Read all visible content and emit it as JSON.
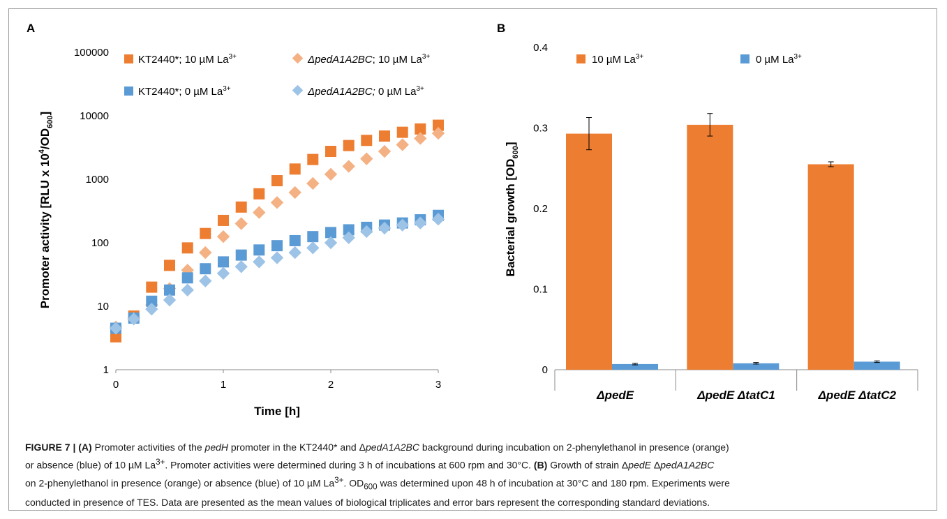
{
  "panels": {
    "a_label": "A",
    "b_label": "B"
  },
  "chart_data": [
    {
      "type": "scatter",
      "panel": "A",
      "xlabel": "Time [h]",
      "ylabel_main": "Promoter activity [RLU x 10",
      "ylabel_sup": "4",
      "ylabel_mid": "/OD",
      "ylabel_sub": "600",
      "ylabel_end": "]",
      "y_scale": "log",
      "xlim": [
        0,
        3
      ],
      "ylim": [
        1,
        100000
      ],
      "x_ticks": [
        "0",
        "1",
        "2",
        "3"
      ],
      "y_ticks": [
        "1",
        "10",
        "100",
        "1000",
        "10000",
        "100000"
      ],
      "x": [
        0,
        0.167,
        0.333,
        0.5,
        0.667,
        0.833,
        1.0,
        1.167,
        1.333,
        1.5,
        1.667,
        1.833,
        2.0,
        2.167,
        2.333,
        2.5,
        2.667,
        2.833,
        3.0
      ],
      "series": [
        {
          "name_a": "KT2440*; 10 µM La",
          "name_sup": "3+",
          "name_italic": false,
          "marker": "square",
          "color": "#ed7d31",
          "values": [
            3.3,
            7,
            20,
            44,
            83,
            140,
            225,
            365,
            590,
            950,
            1450,
            2050,
            2750,
            3400,
            4100,
            4800,
            5500,
            6200,
            7100
          ]
        },
        {
          "name_a": "ΔpedA1A2BC",
          "name_b": "; 10 µM La",
          "name_sup": "3+",
          "name_italic": true,
          "marker": "diamond",
          "color": "#f4b183",
          "values": [
            4.7,
            6.5,
            10.5,
            19,
            37,
            70,
            125,
            200,
            300,
            430,
            620,
            860,
            1200,
            1600,
            2100,
            2750,
            3500,
            4400,
            5300
          ]
        },
        {
          "name_a": "KT2440*; 0 µM La",
          "name_sup": "3+",
          "name_italic": false,
          "marker": "square",
          "color": "#5b9bd5",
          "values": [
            4.5,
            6.5,
            12,
            18,
            28,
            39,
            50,
            64,
            77,
            90,
            108,
            125,
            145,
            160,
            175,
            190,
            205,
            230,
            270
          ]
        },
        {
          "name_a": "ΔpedA1A2BC;",
          "name_b": " 0 µM La",
          "name_sup": "3+",
          "name_italic": true,
          "marker": "diamond",
          "color": "#9dc3e6",
          "values": [
            4.5,
            6.3,
            9,
            12.5,
            18,
            25,
            33,
            42,
            50,
            58,
            70,
            83,
            100,
            120,
            150,
            170,
            190,
            205,
            235
          ]
        }
      ]
    },
    {
      "type": "bar",
      "panel": "B",
      "ylabel_main": "Bacterial growth [OD",
      "ylabel_sub": "600",
      "ylabel_end": "]",
      "ylim": [
        0,
        0.4
      ],
      "y_ticks": [
        "0",
        "0.1",
        "0.2",
        "0.3",
        "0.4"
      ],
      "categories": [
        "ΔpedE",
        "ΔpedE ΔtatC1",
        "ΔpedE ΔtatC2"
      ],
      "series": [
        {
          "name": "10 µM La",
          "name_sup": "3+",
          "color": "#ed7d31",
          "values": [
            0.293,
            0.304,
            0.255
          ],
          "errors": [
            0.02,
            0.014,
            0.003
          ]
        },
        {
          "name": "0 µM La",
          "name_sup": "3+",
          "color": "#5b9bd5",
          "values": [
            0.007,
            0.008,
            0.01
          ],
          "errors": [
            0.001,
            0.001,
            0.001
          ]
        }
      ]
    }
  ],
  "caption": {
    "fig_label": "FIGURE 7 | (A)",
    "t1": " Promoter activities of the ",
    "t1_it": "pedH",
    "t2": " promoter in the KT2440* and Δ",
    "t2_it": "pedA1A2BC",
    "t3": " background during incubation on 2-phenylethanol in presence (orange)",
    "line2": "or absence (blue) of 10 µM La",
    "line2_sup": "3+",
    "line2_b": ". Promoter activities were determined during 3 h of incubations at 600 rpm and 30°C.",
    "line2_bold": " (B)",
    "line2_c": " Growth of strain Δ",
    "line2_it1": "pedE",
    "line2_d": " Δ",
    "line2_it2": "pedA1A2BC",
    "line3": "on 2-phenylethanol in presence (orange) or absence (blue) of 10 µM La",
    "line3_sup": "3+",
    "line3_b": ". OD",
    "line3_sub": "600",
    "line3_c": " was determined upon 48 h of incubation at 30°C and 180 rpm. Experiments were",
    "line4": "conducted in presence of TES. Data are presented as the mean values of biological triplicates and error bars represent the corresponding standard deviations."
  }
}
